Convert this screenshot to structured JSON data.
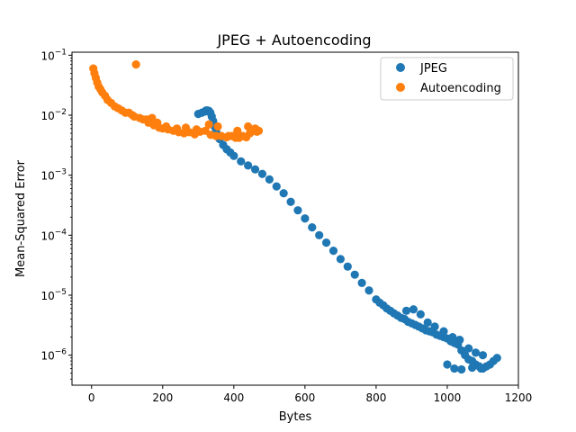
{
  "chart_data": {
    "type": "scatter",
    "title": "JPEG + Autoencoding",
    "xlabel": "Bytes",
    "ylabel": "Mean-Squared Error",
    "xlim": [
      -55,
      1200
    ],
    "ylim_log10": [
      -6.5,
      -0.95
    ],
    "yscale": "log",
    "x_ticks": [
      0,
      200,
      400,
      600,
      800,
      1000,
      1200
    ],
    "y_ticks": [
      {
        "exp": -6,
        "label": "10"
      },
      {
        "exp": -5,
        "label": "10"
      },
      {
        "exp": -4,
        "label": "10"
      },
      {
        "exp": -3,
        "label": "10"
      },
      {
        "exp": -2,
        "label": "10"
      },
      {
        "exp": -1,
        "label": "10"
      }
    ],
    "y_tick_exponents": [
      "−6",
      "−5",
      "−4",
      "−3",
      "−2",
      "−1"
    ],
    "grid": false,
    "legend_position": "upper right",
    "series": [
      {
        "name": "JPEG",
        "color": "#1f77b4",
        "x": [
          300,
          310,
          318,
          322,
          326,
          330,
          334,
          338,
          342,
          346,
          350,
          355,
          360,
          370,
          380,
          390,
          400,
          420,
          440,
          460,
          480,
          500,
          520,
          540,
          560,
          580,
          600,
          620,
          640,
          660,
          680,
          700,
          720,
          740,
          760,
          780,
          800,
          810,
          820,
          830,
          840,
          850,
          860,
          870,
          880,
          890,
          900,
          910,
          920,
          930,
          940,
          950,
          960,
          970,
          980,
          990,
          1000,
          1010,
          1020,
          1030,
          1040,
          1050,
          1060,
          1070,
          1080,
          1090,
          1100,
          1110,
          1120,
          1130,
          1140,
          885,
          905,
          925,
          945,
          965,
          990,
          1015,
          1035,
          1060,
          1080,
          1100,
          1000,
          1020,
          1040,
          1070,
          1095
        ],
        "y": [
          0.0105,
          0.011,
          0.0115,
          0.012,
          0.012,
          0.0118,
          0.011,
          0.0095,
          0.008,
          0.0065,
          0.0055,
          0.0047,
          0.004,
          0.0032,
          0.0027,
          0.0024,
          0.0021,
          0.0017,
          0.00145,
          0.00125,
          0.00105,
          0.00085,
          0.00065,
          0.0005,
          0.00036,
          0.00026,
          0.00019,
          0.000135,
          0.0001,
          7.5e-05,
          5.5e-05,
          4e-05,
          3e-05,
          2.2e-05,
          1.6e-05,
          1.2e-05,
          8.5e-06,
          7.5e-06,
          6.8e-06,
          6e-06,
          5.5e-06,
          5e-06,
          4.6e-06,
          4.2e-06,
          4e-06,
          3.6e-06,
          3.4e-06,
          3.2e-06,
          3e-06,
          2.8e-06,
          2.6e-06,
          2.5e-06,
          2.4e-06,
          2.2e-06,
          2.1e-06,
          2e-06,
          1.9e-06,
          1.7e-06,
          1.6e-06,
          1.5e-06,
          1.2e-06,
          1e-06,
          8.5e-07,
          8e-07,
          7e-07,
          6.5e-07,
          6e-07,
          6.5e-07,
          7e-07,
          8e-07,
          9e-07,
          5.5e-06,
          5.8e-06,
          4.8e-06,
          3.5e-06,
          3e-06,
          2.5e-06,
          2e-06,
          1.8e-06,
          1.3e-06,
          1.1e-06,
          1e-06,
          7e-07,
          6e-07,
          5.8e-07,
          6.2e-07,
          6e-07
        ]
      },
      {
        "name": "Autoencoding",
        "color": "#ff7f0e",
        "x": [
          5,
          8,
          12,
          16,
          20,
          25,
          30,
          38,
          45,
          55,
          65,
          75,
          85,
          95,
          105,
          115,
          120,
          125,
          135,
          145,
          160,
          175,
          190,
          200,
          215,
          230,
          245,
          260,
          275,
          290,
          305,
          320,
          335,
          350,
          365,
          380,
          395,
          405,
          415,
          425,
          435,
          445,
          455,
          465,
          470,
          155,
          170,
          185,
          210,
          240,
          265,
          295,
          330,
          355,
          385,
          410,
          440,
          460
        ],
        "y": [
          0.06,
          0.05,
          0.042,
          0.035,
          0.03,
          0.027,
          0.024,
          0.021,
          0.018,
          0.016,
          0.014,
          0.013,
          0.012,
          0.011,
          0.011,
          0.01,
          0.0095,
          0.07,
          0.009,
          0.0085,
          0.0075,
          0.0068,
          0.0062,
          0.006,
          0.0058,
          0.0055,
          0.0052,
          0.005,
          0.0052,
          0.0048,
          0.0053,
          0.0055,
          0.0047,
          0.0045,
          0.0045,
          0.0043,
          0.0045,
          0.0042,
          0.0042,
          0.0045,
          0.0043,
          0.005,
          0.0055,
          0.0053,
          0.0055,
          0.0085,
          0.009,
          0.0075,
          0.0065,
          0.006,
          0.0062,
          0.0058,
          0.007,
          0.0065,
          0.0045,
          0.0055,
          0.0065,
          0.006
        ]
      }
    ]
  }
}
